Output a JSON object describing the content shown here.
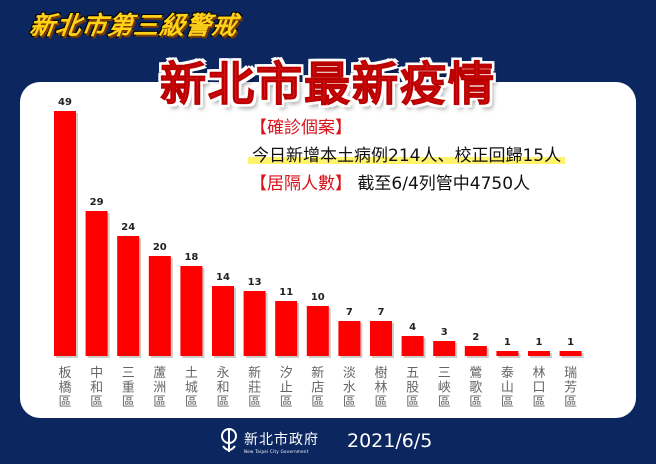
{
  "header": {
    "subtitle": "新北市第三級警戒",
    "title": "新北市最新疫情"
  },
  "info": {
    "confirmed_label": "【確診個案】",
    "confirmed_text": "今日新增本土病例214人、校正回歸15人",
    "quarantine_label": "【居隔人數】",
    "quarantine_text": "截至6/4列管中4750人"
  },
  "footer": {
    "logo_cn": "新北市政府",
    "logo_en": "New Taipei City Government",
    "date": "2021/6/5"
  },
  "colors": {
    "background": "#0c2760",
    "bar": "#ff0000",
    "accent": "#d7141c",
    "highlight": "#fff36b"
  },
  "chart_data": {
    "type": "bar",
    "categories": [
      "板橋區",
      "中和區",
      "三重區",
      "蘆洲區",
      "土城區",
      "永和區",
      "新莊區",
      "汐止區",
      "新店區",
      "淡水區",
      "樹林區",
      "五股區",
      "三峽區",
      "鶯歌區",
      "泰山區",
      "林口區",
      "瑞芳區"
    ],
    "values": [
      49,
      29,
      24,
      20,
      18,
      14,
      13,
      11,
      10,
      7,
      7,
      4,
      3,
      2,
      1,
      1,
      1
    ],
    "ylim": [
      0,
      49
    ],
    "grid": false,
    "data_labels": true
  }
}
